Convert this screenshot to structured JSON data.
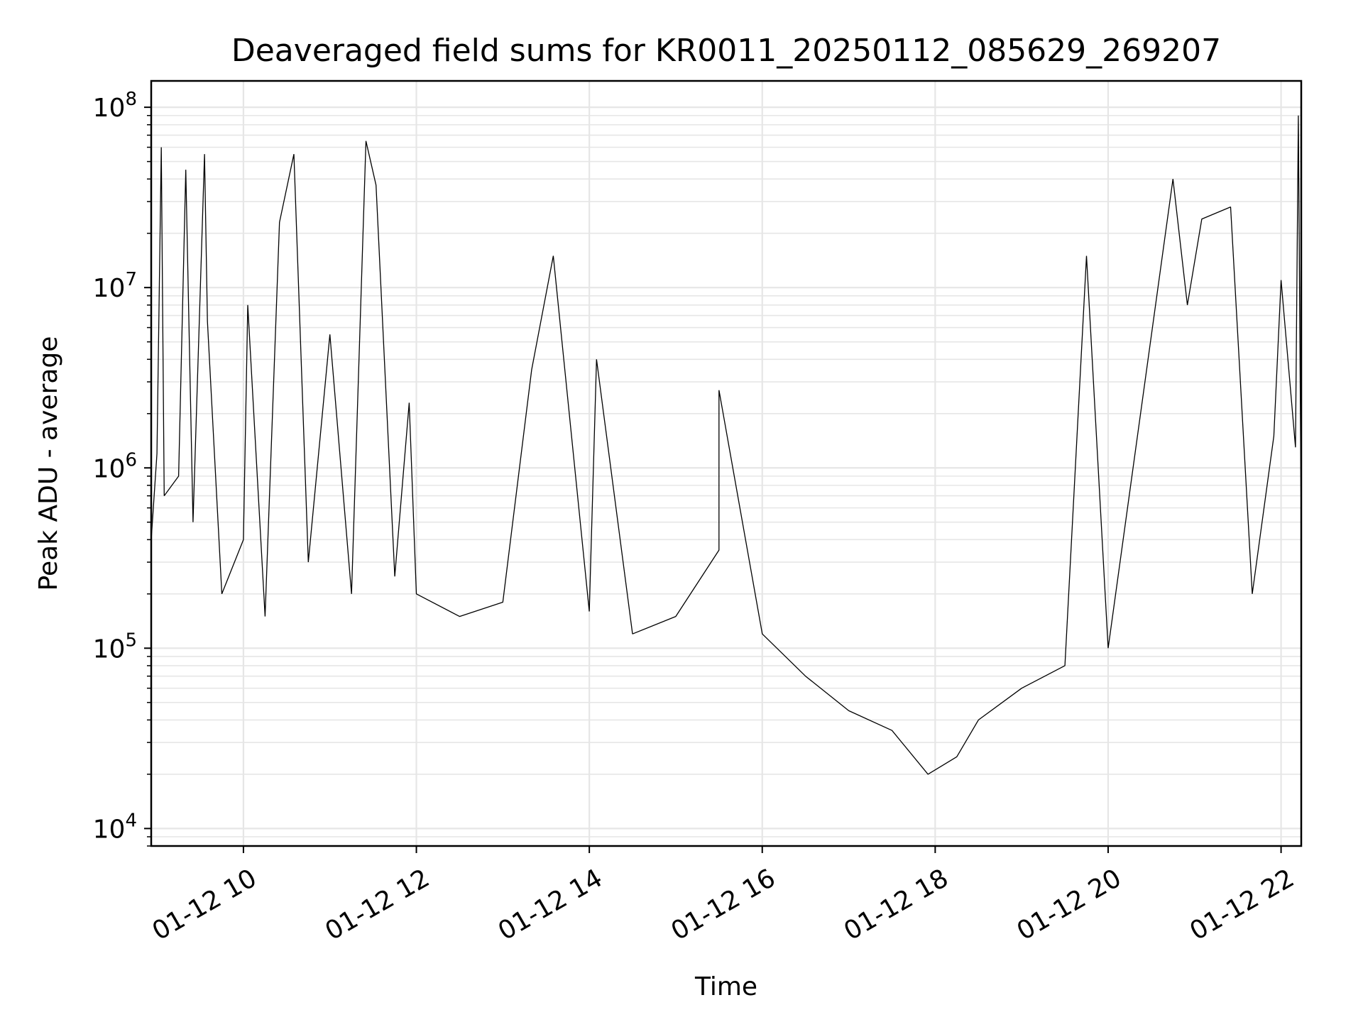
{
  "chart_data": {
    "type": "line",
    "title": "Deaveraged field sums for KR0011_20250112_085629_269207",
    "xlabel": "Time",
    "ylabel": "Peak ADU - average",
    "y_scale": "log",
    "ylim": [
      8000,
      140000000
    ],
    "xlim": [
      "2025-01-12 08:56",
      "2025-01-12 22:14"
    ],
    "x_ticks": [
      {
        "value": "2025-01-12 10:00",
        "label": "01-12 10"
      },
      {
        "value": "2025-01-12 12:00",
        "label": "01-12 12"
      },
      {
        "value": "2025-01-12 14:00",
        "label": "01-12 14"
      },
      {
        "value": "2025-01-12 16:00",
        "label": "01-12 16"
      },
      {
        "value": "2025-01-12 18:00",
        "label": "01-12 18"
      },
      {
        "value": "2025-01-12 20:00",
        "label": "01-12 20"
      },
      {
        "value": "2025-01-12 22:00",
        "label": "01-12 22"
      }
    ],
    "y_ticks": [
      {
        "value": 10000,
        "base": "10",
        "exp": "4"
      },
      {
        "value": 100000,
        "base": "10",
        "exp": "5"
      },
      {
        "value": 1000000,
        "base": "10",
        "exp": "6"
      },
      {
        "value": 10000000,
        "base": "10",
        "exp": "7"
      },
      {
        "value": 100000000,
        "base": "10",
        "exp": "8"
      }
    ],
    "grid": true,
    "line_color": "#000000",
    "grid_color": "#e6e6e6",
    "series": [
      {
        "points": [
          [
            "2025-01-12 08:56",
            400000
          ],
          [
            "2025-01-12 09:00",
            1200000
          ],
          [
            "2025-01-12 09:03",
            60000000
          ],
          [
            "2025-01-12 09:05",
            700000
          ],
          [
            "2025-01-12 09:15",
            900000
          ],
          [
            "2025-01-12 09:20",
            45000000
          ],
          [
            "2025-01-12 09:25",
            500000
          ],
          [
            "2025-01-12 09:33",
            55000000
          ],
          [
            "2025-01-12 09:35",
            6500000
          ],
          [
            "2025-01-12 09:45",
            200000
          ],
          [
            "2025-01-12 10:00",
            400000
          ],
          [
            "2025-01-12 10:03",
            8000000
          ],
          [
            "2025-01-12 10:15",
            150000
          ],
          [
            "2025-01-12 10:25",
            23000000
          ],
          [
            "2025-01-12 10:35",
            55000000
          ],
          [
            "2025-01-12 10:45",
            300000
          ],
          [
            "2025-01-12 11:00",
            5500000
          ],
          [
            "2025-01-12 11:15",
            200000
          ],
          [
            "2025-01-12 11:25",
            65000000
          ],
          [
            "2025-01-12 11:32",
            37000000
          ],
          [
            "2025-01-12 11:45",
            250000
          ],
          [
            "2025-01-12 11:55",
            2300000
          ],
          [
            "2025-01-12 12:00",
            200000
          ],
          [
            "2025-01-12 12:30",
            150000
          ],
          [
            "2025-01-12 13:00",
            180000
          ],
          [
            "2025-01-12 13:20",
            3500000
          ],
          [
            "2025-01-12 13:35",
            15000000
          ],
          [
            "2025-01-12 14:00",
            160000
          ],
          [
            "2025-01-12 14:05",
            4000000
          ],
          [
            "2025-01-12 14:30",
            120000
          ],
          [
            "2025-01-12 15:00",
            150000
          ],
          [
            "2025-01-12 15:30",
            350000
          ],
          [
            "2025-01-12 15:30",
            2700000
          ],
          [
            "2025-01-12 16:00",
            120000
          ],
          [
            "2025-01-12 16:30",
            70000
          ],
          [
            "2025-01-12 17:00",
            45000
          ],
          [
            "2025-01-12 17:30",
            35000
          ],
          [
            "2025-01-12 17:55",
            20000
          ],
          [
            "2025-01-12 18:15",
            25000
          ],
          [
            "2025-01-12 18:30",
            40000
          ],
          [
            "2025-01-12 19:00",
            60000
          ],
          [
            "2025-01-12 19:30",
            80000
          ],
          [
            "2025-01-12 19:45",
            15000000
          ],
          [
            "2025-01-12 20:00",
            100000
          ],
          [
            "2025-01-12 20:45",
            40000000
          ],
          [
            "2025-01-12 20:55",
            8000000
          ],
          [
            "2025-01-12 21:05",
            24000000
          ],
          [
            "2025-01-12 21:25",
            28000000
          ],
          [
            "2025-01-12 21:40",
            200000
          ],
          [
            "2025-01-12 21:55",
            1500000
          ],
          [
            "2025-01-12 22:00",
            11000000
          ],
          [
            "2025-01-12 22:10",
            1300000
          ],
          [
            "2025-01-12 22:12",
            90000000
          ],
          [
            "2025-01-12 22:14",
            450000
          ]
        ]
      }
    ]
  }
}
